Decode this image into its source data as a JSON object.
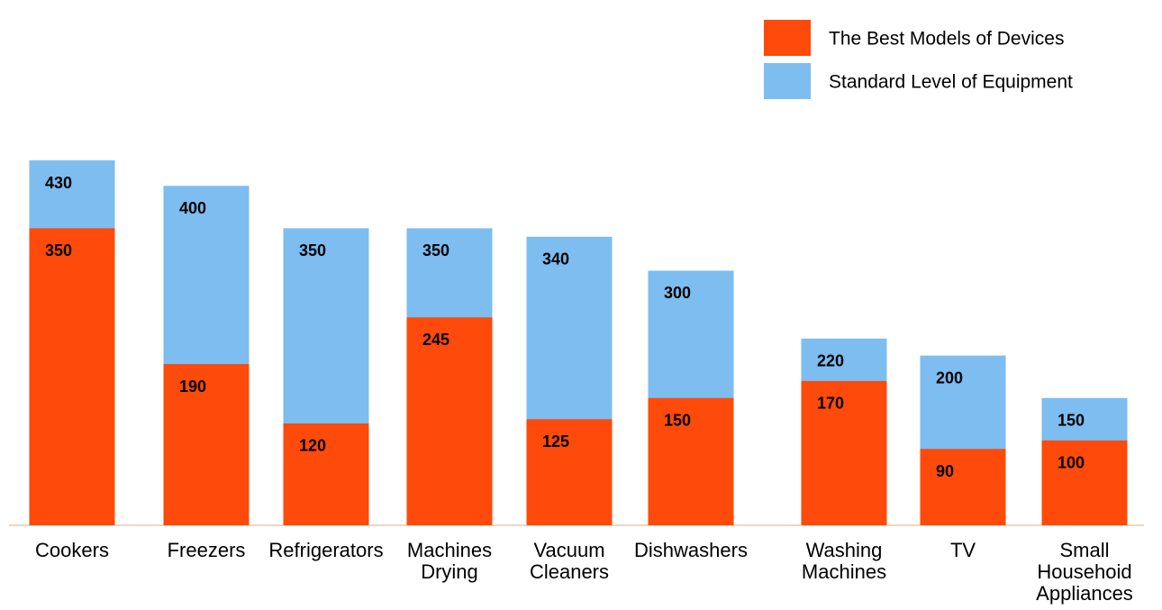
{
  "chart_data": {
    "type": "overlap-bar",
    "categories": [
      "Cookers",
      "Freezers",
      "Refrigerators",
      "Machines Drying",
      "Vacuum Cleaners",
      "Dishwashers",
      "Washing Machines",
      "TV",
      "Small Househoid Appliances"
    ],
    "series": [
      {
        "name": "Standard Level of Equipment",
        "color": "#7dbdf0",
        "values": [
          430,
          400,
          350,
          350,
          340,
          300,
          220,
          200,
          150
        ]
      },
      {
        "name": "The Best Models of Devices",
        "color": "#fe4a0a",
        "values": [
          350,
          190,
          120,
          245,
          125,
          150,
          170,
          90,
          100
        ]
      }
    ],
    "legend": "upper right"
  }
}
